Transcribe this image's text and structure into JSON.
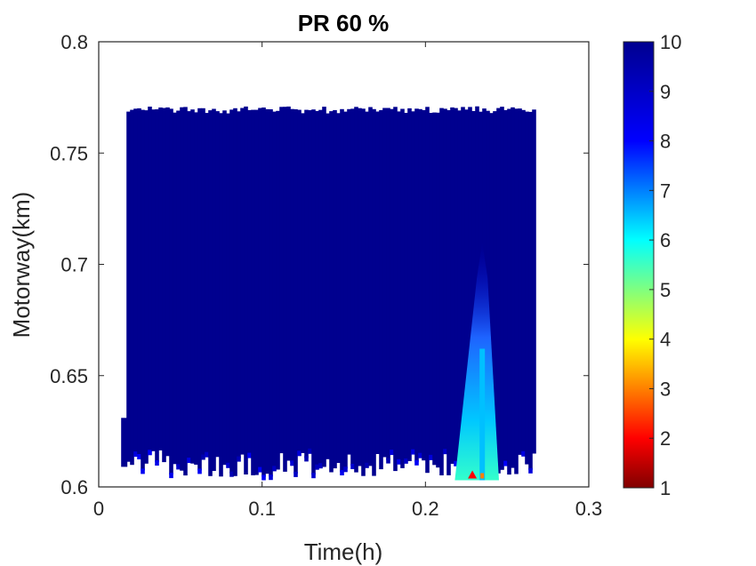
{
  "chart_data": {
    "type": "heatmap",
    "title": "PR 60 %",
    "xlabel": "Time(h)",
    "ylabel": "Motorway(km)",
    "xlim": [
      0,
      0.3
    ],
    "ylim": [
      0.6,
      0.8
    ],
    "xticks": [
      0,
      0.1,
      0.2,
      0.3
    ],
    "xtick_labels": [
      "0",
      "0.1",
      "0.2",
      "0.3"
    ],
    "yticks": [
      0.6,
      0.65,
      0.7,
      0.75,
      0.8
    ],
    "ytick_labels": [
      "0.6",
      "0.65",
      "0.7",
      "0.75",
      "0.8"
    ],
    "colorbar": {
      "colormap": "jet",
      "clim": [
        1,
        10
      ],
      "ticks": [
        1,
        2,
        3,
        4,
        5,
        6,
        7,
        8,
        9,
        10
      ],
      "tick_labels": [
        "1",
        "2",
        "3",
        "4",
        "5",
        "6",
        "7",
        "8",
        "9",
        "10"
      ]
    },
    "data_extent": {
      "time_range": [
        0.017,
        0.266
      ],
      "position_range": [
        0.603,
        0.771
      ]
    },
    "background_value": 10,
    "low_value_regions": [
      {
        "time": [
          0.218,
          0.245
        ],
        "position": [
          0.603,
          0.71
        ],
        "value_min": 6.5
      },
      {
        "time": [
          0.226,
          0.238
        ],
        "position": [
          0.603,
          0.608
        ],
        "value_min": 2
      }
    ],
    "grid": false,
    "legend": "none"
  }
}
